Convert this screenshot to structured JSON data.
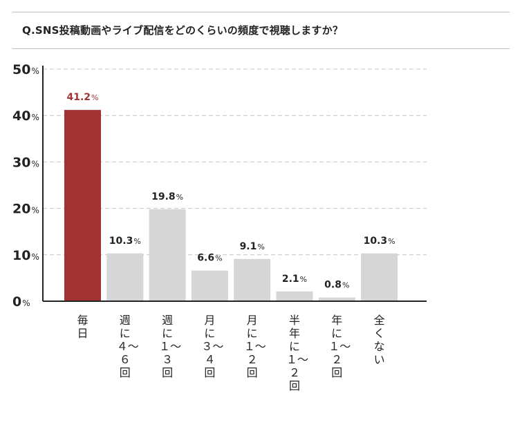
{
  "question": "Q.SNS投稿動画やライブ配信をどのくらいの頻度で視聴しますか？",
  "colors": {
    "highlight": "#a33234",
    "normal": "#d6d6d6",
    "axis": "#222222",
    "grid": "#c4c4c4"
  },
  "chart_data": {
    "type": "bar",
    "title": "",
    "xlabel": "",
    "ylabel": "",
    "ylim": [
      0,
      50
    ],
    "yticks": [
      {
        "value": 0,
        "num": "0",
        "unit": "%"
      },
      {
        "value": 10,
        "num": "10",
        "unit": "%"
      },
      {
        "value": 20,
        "num": "20",
        "unit": "%"
      },
      {
        "value": 30,
        "num": "30",
        "unit": "%"
      },
      {
        "value": 40,
        "num": "40",
        "unit": "%"
      },
      {
        "value": 50,
        "num": "50",
        "unit": "%"
      }
    ],
    "grid": true,
    "categories": [
      "毎日",
      "週に４〜６回",
      "週に１〜３回",
      "月に３〜４回",
      "月に１〜２回",
      "半年に１〜２回",
      "年に１〜２回",
      "全くない"
    ],
    "values": [
      41.2,
      10.3,
      19.8,
      6.6,
      9.1,
      2.1,
      0.8,
      10.3
    ],
    "value_labels": [
      "41.2",
      "10.3",
      "19.8",
      "6.6",
      "9.1",
      "2.1",
      "0.8",
      "10.3"
    ],
    "value_unit": "%",
    "highlight_index": 0
  }
}
